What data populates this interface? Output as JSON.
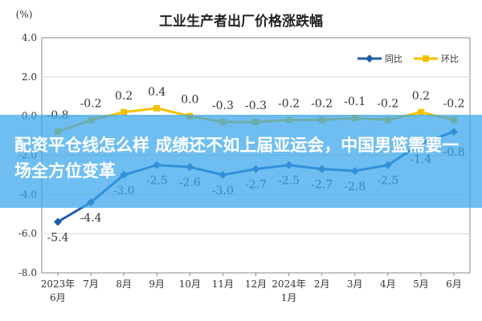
{
  "chart_data": {
    "type": "line",
    "title": "工业生产者出厂价格涨跌幅",
    "unit_label": "(%)",
    "categories": [
      "2023年6月",
      "7月",
      "8月",
      "9月",
      "10月",
      "11月",
      "12月",
      "2024年1月",
      "2月",
      "3月",
      "4月",
      "5月",
      "6月"
    ],
    "ylim": [
      -8.0,
      4.0
    ],
    "yticks": [
      "4.0",
      "2.0",
      "0.0",
      "-2.0",
      "-4.0",
      "-6.0",
      "-8.0"
    ],
    "legend_position": "top-right",
    "series": [
      {
        "name": "同比",
        "color": "#1f5fa8",
        "values": [
          -5.4,
          -4.4,
          -3.0,
          -2.5,
          -2.6,
          -3.0,
          -2.7,
          -2.5,
          -2.7,
          -2.8,
          -2.5,
          -1.4,
          -0.8
        ],
        "labels": [
          "-5.4",
          "-4.4",
          "-3.0",
          "-2.5",
          "-2.6",
          "-3.0",
          "-2.7",
          "-2.5",
          "-2.7",
          "-2.8",
          "-2.5",
          "-1.4",
          "-0.8"
        ]
      },
      {
        "name": "环比",
        "color": "#f2c200",
        "values": [
          -0.8,
          -0.2,
          0.2,
          0.4,
          0.0,
          -0.3,
          -0.3,
          -0.2,
          -0.2,
          -0.1,
          -0.2,
          0.2,
          -0.2
        ],
        "labels": [
          "-0.8",
          "-0.2",
          "0.2",
          "0.4",
          "0.0",
          "-0.3",
          "-0.3",
          "-0.2",
          "-0.2",
          "-0.1",
          "-0.2",
          "0.2",
          "-0.2"
        ]
      }
    ]
  },
  "overlay": {
    "headline": "配资平仓线怎么样 成绩还不如上届亚运会，中国男篮需要一场全方位变革",
    "background": "#37a5eb"
  }
}
